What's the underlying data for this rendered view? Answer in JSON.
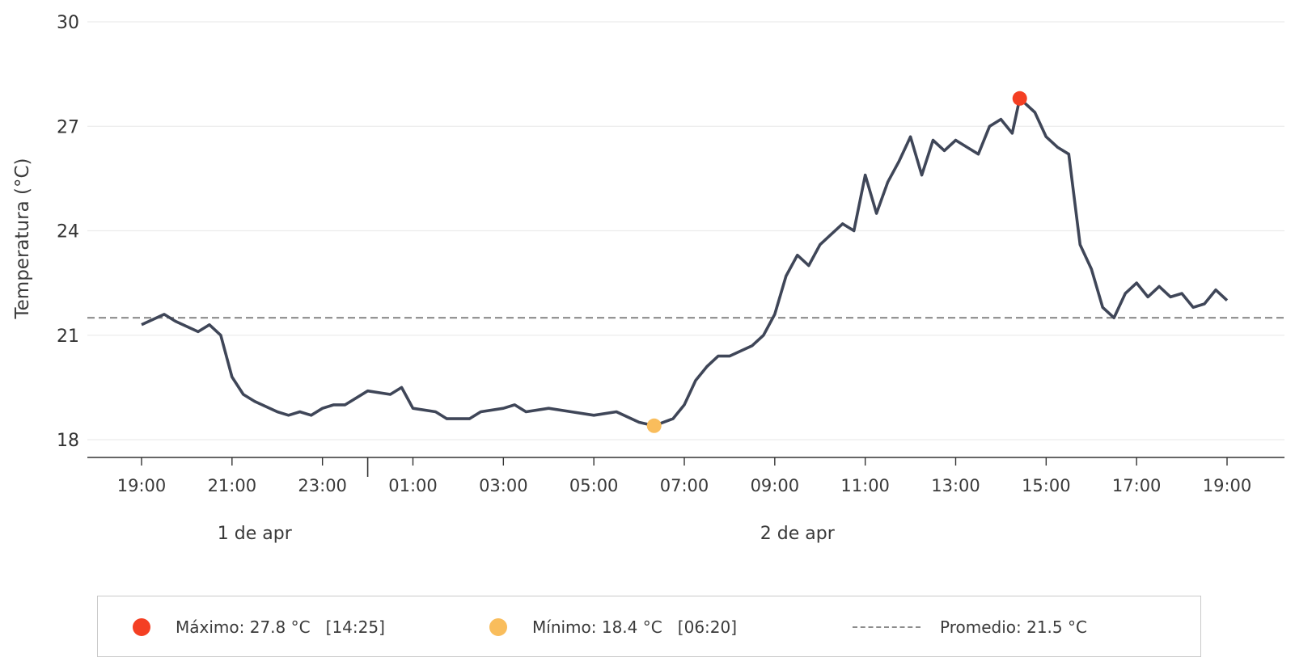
{
  "chart_data": {
    "type": "line",
    "ylabel": "Temperatura (°C)",
    "ylim": [
      17.5,
      30.3
    ],
    "yticks": [
      18,
      21,
      24,
      27,
      30
    ],
    "x_start": "19:00",
    "xticks": [
      "19:00",
      "21:00",
      "23:00",
      "01:00",
      "03:00",
      "05:00",
      "07:00",
      "09:00",
      "11:00",
      "13:00",
      "15:00",
      "17:00",
      "19:00"
    ],
    "days": [
      {
        "label": "1 de apr",
        "at": "21:30"
      },
      {
        "label": "2 de apr",
        "at": "09:30"
      }
    ],
    "day_separator": "00:00",
    "grid": "horizontal",
    "series": [
      {
        "color": "#3f4658",
        "points": [
          [
            "19:00",
            21.3
          ],
          [
            "19:30",
            21.6
          ],
          [
            "19:45",
            21.4
          ],
          [
            "20:15",
            21.1
          ],
          [
            "20:30",
            21.3
          ],
          [
            "20:45",
            21.0
          ],
          [
            "21:00",
            19.8
          ],
          [
            "21:15",
            19.3
          ],
          [
            "21:30",
            19.1
          ],
          [
            "22:00",
            18.8
          ],
          [
            "22:15",
            18.7
          ],
          [
            "22:30",
            18.8
          ],
          [
            "22:45",
            18.7
          ],
          [
            "23:00",
            18.9
          ],
          [
            "23:15",
            19.0
          ],
          [
            "23:30",
            19.0
          ],
          [
            "00:00",
            19.4
          ],
          [
            "00:30",
            19.3
          ],
          [
            "00:45",
            19.5
          ],
          [
            "01:00",
            18.9
          ],
          [
            "01:30",
            18.8
          ],
          [
            "01:45",
            18.6
          ],
          [
            "02:15",
            18.6
          ],
          [
            "02:30",
            18.8
          ],
          [
            "03:00",
            18.9
          ],
          [
            "03:15",
            19.0
          ],
          [
            "03:30",
            18.8
          ],
          [
            "04:00",
            18.9
          ],
          [
            "04:30",
            18.8
          ],
          [
            "05:00",
            18.7
          ],
          [
            "05:30",
            18.8
          ],
          [
            "06:00",
            18.5
          ],
          [
            "06:20",
            18.4
          ],
          [
            "06:45",
            18.6
          ],
          [
            "07:00",
            19.0
          ],
          [
            "07:15",
            19.7
          ],
          [
            "07:30",
            20.1
          ],
          [
            "07:45",
            20.4
          ],
          [
            "08:00",
            20.4
          ],
          [
            "08:30",
            20.7
          ],
          [
            "08:45",
            21.0
          ],
          [
            "09:00",
            21.6
          ],
          [
            "09:15",
            22.7
          ],
          [
            "09:30",
            23.3
          ],
          [
            "09:45",
            23.0
          ],
          [
            "10:00",
            23.6
          ],
          [
            "10:15",
            23.9
          ],
          [
            "10:30",
            24.2
          ],
          [
            "10:45",
            24.0
          ],
          [
            "11:00",
            25.6
          ],
          [
            "11:15",
            24.5
          ],
          [
            "11:30",
            25.4
          ],
          [
            "11:45",
            26.0
          ],
          [
            "12:00",
            26.7
          ],
          [
            "12:15",
            25.6
          ],
          [
            "12:30",
            26.6
          ],
          [
            "12:45",
            26.3
          ],
          [
            "13:00",
            26.6
          ],
          [
            "13:15",
            26.4
          ],
          [
            "13:30",
            26.2
          ],
          [
            "13:45",
            27.0
          ],
          [
            "14:00",
            27.2
          ],
          [
            "14:15",
            26.8
          ],
          [
            "14:25",
            27.8
          ],
          [
            "14:45",
            27.4
          ],
          [
            "15:00",
            26.7
          ],
          [
            "15:15",
            26.4
          ],
          [
            "15:30",
            26.2
          ],
          [
            "15:45",
            23.6
          ],
          [
            "16:00",
            22.9
          ],
          [
            "16:15",
            21.8
          ],
          [
            "16:30",
            21.5
          ],
          [
            "16:45",
            22.2
          ],
          [
            "17:00",
            22.5
          ],
          [
            "17:15",
            22.1
          ],
          [
            "17:30",
            22.4
          ],
          [
            "17:45",
            22.1
          ],
          [
            "18:00",
            22.2
          ],
          [
            "18:15",
            21.8
          ],
          [
            "18:30",
            21.9
          ],
          [
            "18:45",
            22.3
          ],
          [
            "19:00",
            22.0
          ]
        ]
      }
    ],
    "average": {
      "value": 21.5,
      "color": "#8c8c8c",
      "style": "dashed"
    },
    "max_point": {
      "time": "14:25",
      "value": 27.8,
      "color": "#f43f23"
    },
    "min_point": {
      "time": "06:20",
      "value": 18.4,
      "color": "#f9bd5c"
    }
  },
  "legend": {
    "max": {
      "color": "#f43f23",
      "text": "Máximo: 27.8 °C   [14:25]"
    },
    "min": {
      "color": "#f9bd5c",
      "text": "Mínimo: 18.4 °C   [06:20]"
    },
    "avg": {
      "color": "#8c8c8c",
      "text": "Promedio: 21.5 °C"
    }
  }
}
